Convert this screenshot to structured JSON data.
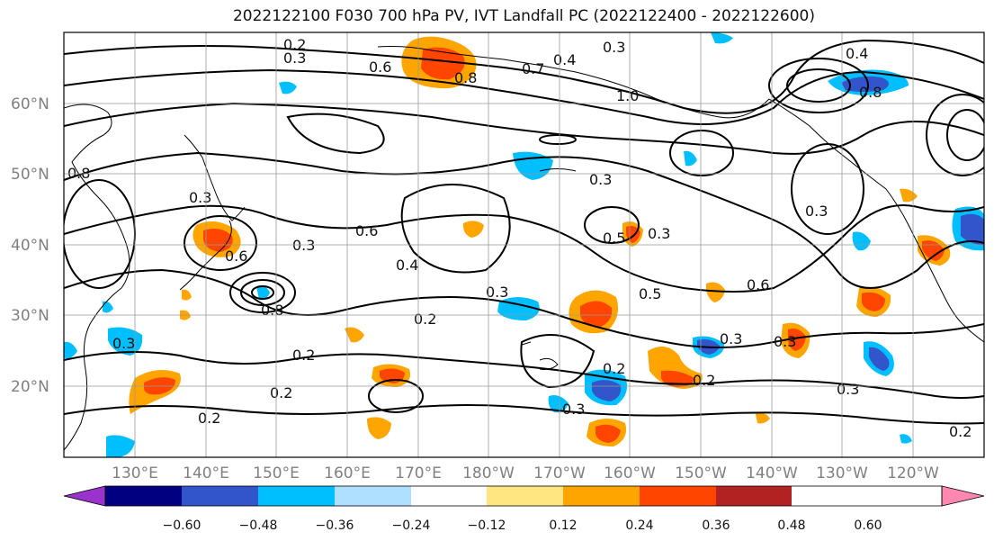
{
  "title": "2022122100 F030 700 hPa PV, IVT Landfall PC (2022122400 - 2022122600)",
  "lat_labels": [
    "60°N",
    "50°N",
    "40°N",
    "30°N",
    "20°N"
  ],
  "lon_labels": [
    "130°E",
    "140°E",
    "150°E",
    "160°E",
    "170°E",
    "180°W",
    "170°W",
    "160°W",
    "150°W",
    "140°W",
    "130°W",
    "120°W"
  ],
  "colorbar": {
    "ticks": [
      "−0.60",
      "−0.48",
      "−0.36",
      "−0.24",
      "−0.12",
      "0.12",
      "0.24",
      "0.36",
      "0.48",
      "0.60"
    ],
    "colors": [
      "#9933cc",
      "#000080",
      "#3355cc",
      "#00bfff",
      "#b0e0ff",
      "#ffffff",
      "#ffe680",
      "#ffa500",
      "#ff4500",
      "#b22222",
      "#ff88b0"
    ]
  },
  "contour_labels": [
    "0.2",
    "0.3",
    "0.4",
    "0.5",
    "0.6",
    "0.7",
    "0.8",
    "1.0"
  ]
}
